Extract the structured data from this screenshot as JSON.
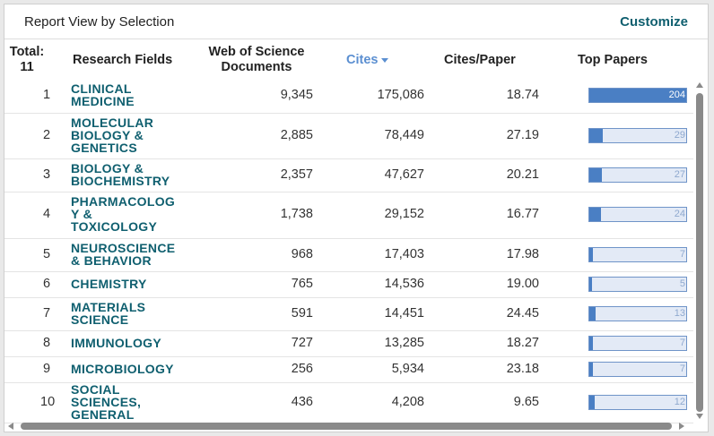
{
  "title": "Report View by Selection",
  "customize_label": "Customize",
  "headers": {
    "total_label": "Total:",
    "total_count": "11",
    "research_fields": "Research Fields",
    "wos_documents_line1": "Web of Science",
    "wos_documents_line2": "Documents",
    "cites": "Cites",
    "cites_per_paper": "Cites/Paper",
    "top_papers": "Top Papers"
  },
  "rows": [
    {
      "rank": "1",
      "field": "CLINICAL MEDICINE",
      "docs": "9,345",
      "cites": "175,086",
      "cpp": "18.74",
      "top": "204",
      "top_fraction": 1.0
    },
    {
      "rank": "2",
      "field": "MOLECULAR BIOLOGY & GENETICS",
      "docs": "2,885",
      "cites": "78,449",
      "cpp": "27.19",
      "top": "29",
      "top_fraction": 0.142
    },
    {
      "rank": "3",
      "field": "BIOLOGY & BIOCHEMISTRY",
      "docs": "2,357",
      "cites": "47,627",
      "cpp": "20.21",
      "top": "27",
      "top_fraction": 0.132
    },
    {
      "rank": "4",
      "field": "PHARMACOLOGY & TOXICOLOGY",
      "docs": "1,738",
      "cites": "29,152",
      "cpp": "16.77",
      "top": "24",
      "top_fraction": 0.118
    },
    {
      "rank": "5",
      "field": "NEUROSCIENCE & BEHAVIOR",
      "docs": "968",
      "cites": "17,403",
      "cpp": "17.98",
      "top": "7",
      "top_fraction": 0.034
    },
    {
      "rank": "6",
      "field": "CHEMISTRY",
      "docs": "765",
      "cites": "14,536",
      "cpp": "19.00",
      "top": "5",
      "top_fraction": 0.025
    },
    {
      "rank": "7",
      "field": "MATERIALS SCIENCE",
      "docs": "591",
      "cites": "14,451",
      "cpp": "24.45",
      "top": "13",
      "top_fraction": 0.064
    },
    {
      "rank": "8",
      "field": "IMMUNOLOGY",
      "docs": "727",
      "cites": "13,285",
      "cpp": "18.27",
      "top": "7",
      "top_fraction": 0.034
    },
    {
      "rank": "9",
      "field": "MICROBIOLOGY",
      "docs": "256",
      "cites": "5,934",
      "cpp": "23.18",
      "top": "7",
      "top_fraction": 0.034
    },
    {
      "rank": "10",
      "field": "SOCIAL SCIENCES, GENERAL",
      "docs": "436",
      "cites": "4,208",
      "cpp": "9.65",
      "top": "12",
      "top_fraction": 0.059
    }
  ],
  "colors": {
    "link": "#0f5f6f",
    "sort_header": "#5b8fd1",
    "bar_fill": "#4a7fc4",
    "bar_bg": "#e3eaf6"
  }
}
